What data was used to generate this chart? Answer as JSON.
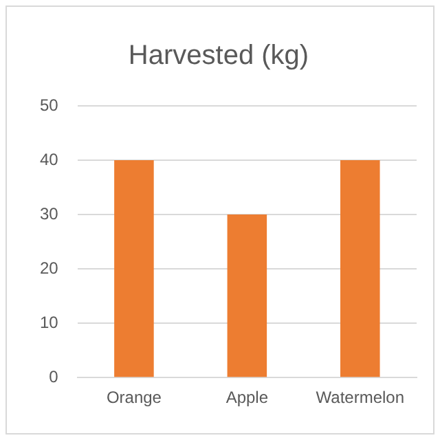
{
  "chart_data": {
    "type": "bar",
    "title": "Harvested (kg)",
    "categories": [
      "Orange",
      "Apple",
      "Watermelon"
    ],
    "values": [
      40,
      30,
      40
    ],
    "color": "#ed7d31",
    "ylim": [
      0,
      50
    ],
    "yticks": [
      0,
      10,
      20,
      30,
      40,
      50
    ],
    "grid": "y",
    "legend": false
  }
}
